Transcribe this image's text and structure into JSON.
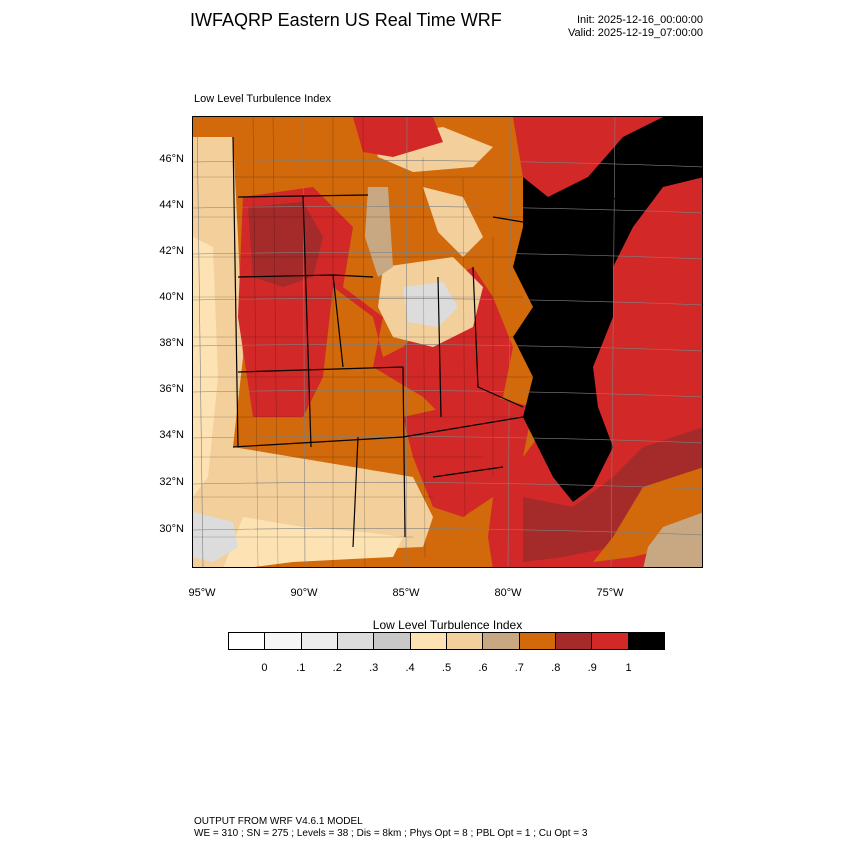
{
  "header": {
    "title": "IWFAQRP Eastern US Real Time WRF",
    "init": "Init: 2025-12-16_00:00:00",
    "valid": "Valid: 2025-12-19_07:00:00"
  },
  "map": {
    "subtitle": "Low Level Turbulence Index",
    "lat_labels": [
      "46°N",
      "44°N",
      "42°N",
      "40°N",
      "38°N",
      "36°N",
      "34°N",
      "32°N",
      "30°N"
    ],
    "lon_labels": [
      "95°W",
      "90°W",
      "85°W",
      "80°W",
      "75°W"
    ],
    "region": "Eastern United States"
  },
  "colorbar": {
    "title": "Low Level Turbulence Index",
    "labels": [
      "0",
      ".1",
      ".2",
      ".3",
      ".4",
      ".5",
      ".6",
      ".7",
      ".8",
      ".9",
      "1"
    ],
    "colors": [
      "#ffffff",
      "#f6f6f6",
      "#ececec",
      "#dcdcdc",
      "#c8c8c8",
      "#fde3b4",
      "#f3cf9c",
      "#c8a882",
      "#d2690a",
      "#a52a2a",
      "#d22828",
      "#000000"
    ]
  },
  "footer": {
    "line1": "OUTPUT FROM WRF V4.6.1 MODEL",
    "line2": "WE = 310 ; SN = 275 ; Levels = 38 ; Dis = 8km ; Phys Opt = 8 ; PBL Opt = 1 ; Cu Opt = 3"
  }
}
